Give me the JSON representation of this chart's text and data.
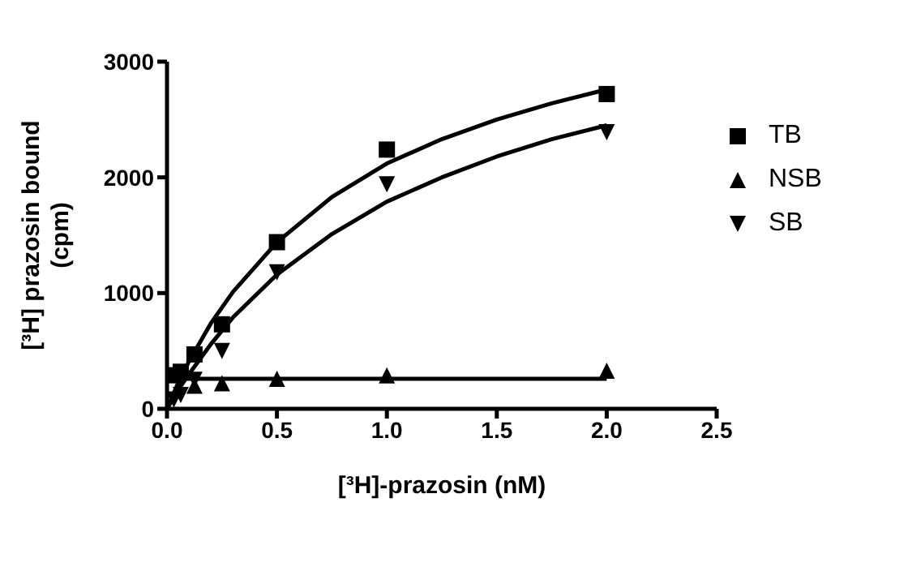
{
  "chart_data": {
    "type": "scatter",
    "xlabel": "[³H]-prazosin (nM)",
    "ylabel": "[³H] prazosin bound (cpm)",
    "xlim": [
      0,
      2.5
    ],
    "xticks": [
      {
        "value": 0,
        "label": "0.0"
      },
      {
        "value": 0.5,
        "label": "0.5"
      },
      {
        "value": 1,
        "label": "1.0"
      },
      {
        "value": 1.5,
        "label": "1.5"
      },
      {
        "value": 2,
        "label": "2.0"
      },
      {
        "value": 2.5,
        "label": "2.5"
      }
    ],
    "ylim": [
      0,
      3000
    ],
    "yticks": [
      0,
      1000,
      2000,
      3000
    ],
    "grid": false,
    "legend": "top right",
    "series": [
      {
        "name": "TB",
        "marker": "square",
        "color": "#000000",
        "x": [
          0.03125,
          0.0625,
          0.125,
          0.25,
          0.5,
          1,
          2
        ],
        "values": [
          290,
          320,
          470,
          730,
          1440,
          2240,
          2720
        ]
      },
      {
        "name": "NSB",
        "marker": "triangle",
        "color": "#000000",
        "x": [
          0.125,
          0.25,
          0.5,
          1,
          2
        ],
        "values": [
          200,
          220,
          260,
          290,
          330
        ]
      },
      {
        "name": "SB",
        "marker": "triangle-down",
        "color": "#000000",
        "x": [
          0.03125,
          0.0625,
          0.125,
          0.25,
          0.5,
          1,
          2
        ],
        "values": [
          80,
          120,
          250,
          500,
          1180,
          1940,
          2390
        ]
      },
      {
        "type": "line",
        "marker": "none",
        "color": "#000000",
        "x": [
          0,
          0.05,
          0.1,
          0.2,
          0.3,
          0.5,
          0.75,
          1,
          1.25,
          1.5,
          1.75,
          2
        ],
        "values": [
          0,
          220,
          410,
          740,
          1010,
          1440,
          1830,
          2120,
          2330,
          2500,
          2640,
          2760
        ]
      },
      {
        "type": "line",
        "marker": "none",
        "color": "#000000",
        "x": [
          0,
          2
        ],
        "values": [
          260,
          260
        ]
      },
      {
        "type": "line",
        "marker": "none",
        "color": "#000000",
        "x": [
          0,
          0.05,
          0.1,
          0.2,
          0.3,
          0.5,
          0.75,
          1,
          1.25,
          1.5,
          1.75,
          2
        ],
        "values": [
          0,
          160,
          300,
          560,
          790,
          1160,
          1510,
          1790,
          2000,
          2180,
          2330,
          2450
        ]
      }
    ]
  }
}
